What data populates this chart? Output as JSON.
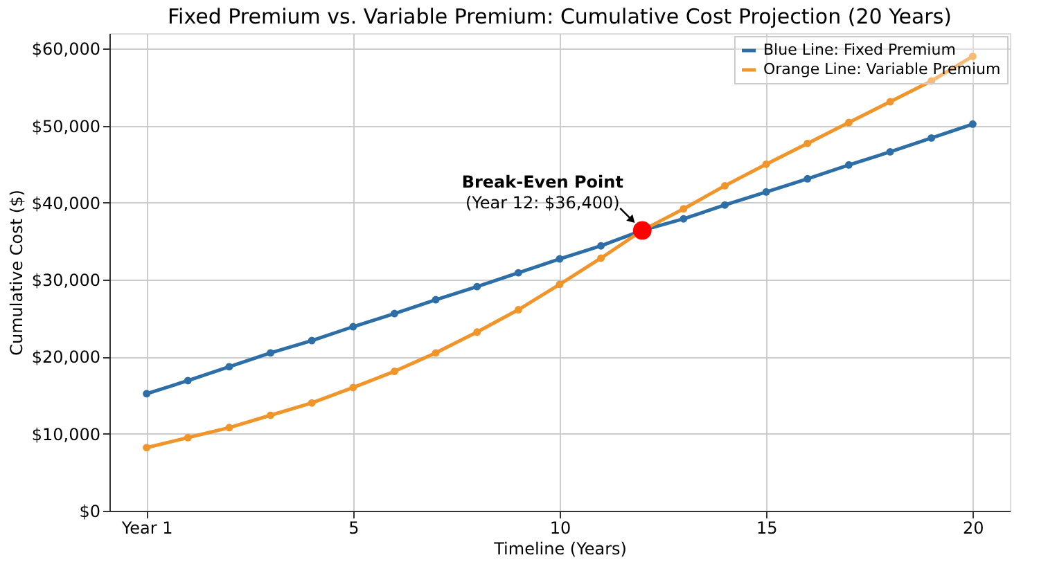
{
  "chart_data": {
    "type": "line",
    "title": "Fixed Premium vs. Variable Premium: Cumulative Cost Projection (20 Years)",
    "xlabel": "Timeline (Years)",
    "ylabel": "Cumulative Cost ($)",
    "x": [
      0,
      1,
      2,
      3,
      4,
      5,
      6,
      7,
      8,
      9,
      10,
      11,
      12,
      13,
      14,
      15,
      16,
      17,
      18,
      19,
      20
    ],
    "series": [
      {
        "name": "Blue Line: Fixed Premium",
        "color": "#2e6ea6",
        "values": [
          15200,
          16900,
          18700,
          20500,
          22100,
          23900,
          25600,
          27400,
          29100,
          30900,
          32700,
          34400,
          36400,
          37900,
          39700,
          41400,
          43100,
          44900,
          46600,
          48400,
          50200
        ]
      },
      {
        "name": "Orange Line: Variable Premium",
        "color": "#f0952a",
        "values": [
          8200,
          9500,
          10800,
          12400,
          14000,
          16000,
          18100,
          20500,
          23200,
          26100,
          29400,
          32800,
          36400,
          39200,
          42200,
          45000,
          47700,
          50400,
          53100,
          55800,
          59000
        ]
      },
      {
        "type": "scatter",
        "color": "#ff0000",
        "x": [
          12
        ],
        "values": [
          36400
        ]
      }
    ],
    "annotations": [
      "Break-Even Point",
      {
        "text": "(Year 12: $36,400)",
        "x": 12,
        "y": 36400
      }
    ],
    "xlim": [
      -0.9,
      20.9
    ],
    "xticks": [
      {
        "value": 0,
        "label": "Year 1"
      },
      5,
      10,
      15,
      20
    ],
    "ylim": [
      0,
      62000
    ],
    "yticks": [
      {
        "value": 0,
        "label": "$0"
      },
      {
        "value": 10000,
        "label": "$10,000"
      },
      {
        "value": 20000,
        "label": "$20,000"
      },
      {
        "value": 30000,
        "label": "$30,000"
      },
      {
        "value": 40000,
        "label": "$40,000"
      },
      {
        "value": 50000,
        "label": "$50,000"
      },
      {
        "value": 60000,
        "label": "$60,000"
      }
    ],
    "grid": true,
    "legend": "top right",
    "marker": "circle",
    "line_style": "solid"
  }
}
